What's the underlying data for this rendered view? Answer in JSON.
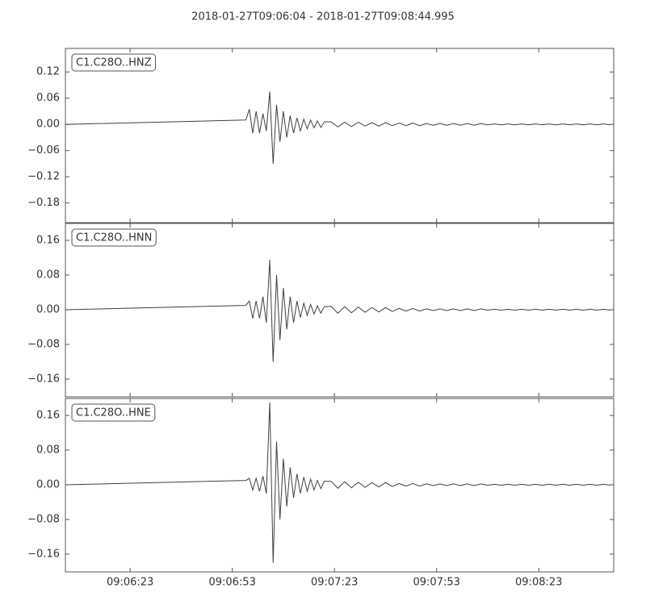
{
  "title": "2018-01-27T09:06:04  -  2018-01-27T09:08:44.995",
  "chart_data": [
    {
      "type": "line",
      "label": "C1.C28O..HNZ",
      "color": "#404040",
      "xlim": [
        "09:06:04",
        "09:08:44.995"
      ],
      "xticks": [
        "09:06:23",
        "09:06:53",
        "09:07:23",
        "09:07:53",
        "09:08:23"
      ],
      "ylim": [
        -0.225,
        0.174
      ],
      "yticks": [
        0.12,
        0.06,
        {
          "value": 0,
          "label": "0.00"
        },
        {
          "value": -0.06,
          "label": "−0.06"
        },
        {
          "value": -0.12,
          "label": "−0.12"
        },
        {
          "value": -0.18,
          "label": "−0.18"
        }
      ],
      "x": [
        "09:06:04",
        "09:06:57",
        "09:06:58",
        "09:06:59",
        "09:07:00",
        "09:07:01",
        "09:07:02",
        "09:07:03",
        "09:07:04",
        "09:07:05",
        "09:07:06",
        "09:07:07",
        "09:07:08",
        "09:07:09",
        "09:07:10",
        "09:07:11",
        "09:07:12",
        "09:07:13",
        "09:07:14",
        "09:07:15",
        "09:07:16",
        "09:07:17",
        "09:07:18",
        "09:07:19",
        "09:07:20",
        "09:07:22",
        "09:07:24",
        "09:07:26",
        "09:07:28",
        "09:07:30",
        "09:07:32",
        "09:07:34",
        "09:07:36",
        "09:07:38",
        "09:07:40",
        "09:07:42",
        "09:07:44",
        "09:07:46",
        "09:07:48",
        "09:07:50",
        "09:07:52",
        "09:07:54",
        "09:07:56",
        "09:07:58",
        "09:08:00",
        "09:08:02",
        "09:08:04",
        "09:08:06",
        "09:08:08",
        "09:08:10",
        "09:08:12",
        "09:08:14",
        "09:08:16",
        "09:08:18",
        "09:08:20",
        "09:08:22",
        "09:08:24",
        "09:08:26",
        "09:08:28",
        "09:08:30",
        "09:08:32",
        "09:08:34",
        "09:08:36",
        "09:08:38",
        "09:08:40",
        "09:08:42",
        "09:08:44"
      ],
      "values": [
        0,
        0.01,
        0.035,
        -0.02,
        0.03,
        -0.02,
        0.025,
        -0.015,
        0.075,
        -0.09,
        0.045,
        -0.04,
        0.03,
        -0.03,
        0.02,
        -0.02,
        0.015,
        -0.015,
        0.012,
        -0.01,
        0.01,
        -0.008,
        0.008,
        -0.007,
        0.006,
        0.006,
        -0.006,
        0.005,
        -0.005,
        0.005,
        -0.004,
        0.004,
        -0.004,
        0.004,
        -0.003,
        0.003,
        -0.003,
        0.003,
        -0.003,
        0.002,
        -0.002,
        0.002,
        -0.002,
        0.002,
        -0.002,
        0.002,
        -0.002,
        0.002,
        -0.001,
        0.001,
        -0.001,
        0.001,
        -0.001,
        0.001,
        -0.001,
        0.001,
        -0.001,
        0.001,
        -0.001,
        0.001,
        -0.001,
        0.001,
        -0.001,
        0.001,
        -0.001,
        0.001,
        -0.001
      ]
    },
    {
      "type": "line",
      "label": "C1.C28O..HNN",
      "color": "#404040",
      "xlim": [
        "09:06:04",
        "09:08:44.995"
      ],
      "xticks": [
        "09:06:23",
        "09:06:53",
        "09:07:23",
        "09:07:53",
        "09:08:23"
      ],
      "ylim": [
        -0.201,
        0.199
      ],
      "yticks": [
        0.16,
        0.08,
        {
          "value": 0,
          "label": "0.00"
        },
        {
          "value": -0.08,
          "label": "−0.08"
        },
        {
          "value": -0.16,
          "label": "−0.16"
        }
      ],
      "x": [
        "09:06:04",
        "09:06:57",
        "09:06:58",
        "09:06:59",
        "09:07:00",
        "09:07:01",
        "09:07:02",
        "09:07:03",
        "09:07:04",
        "09:07:05",
        "09:07:06",
        "09:07:07",
        "09:07:08",
        "09:07:09",
        "09:07:10",
        "09:07:11",
        "09:07:12",
        "09:07:13",
        "09:07:14",
        "09:07:15",
        "09:07:16",
        "09:07:17",
        "09:07:18",
        "09:07:19",
        "09:07:20",
        "09:07:22",
        "09:07:24",
        "09:07:26",
        "09:07:28",
        "09:07:30",
        "09:07:32",
        "09:07:34",
        "09:07:36",
        "09:07:38",
        "09:07:40",
        "09:07:42",
        "09:07:44",
        "09:07:46",
        "09:07:48",
        "09:07:50",
        "09:07:52",
        "09:07:54",
        "09:07:56",
        "09:07:58",
        "09:08:00",
        "09:08:02",
        "09:08:04",
        "09:08:06",
        "09:08:08",
        "09:08:10",
        "09:08:12",
        "09:08:14",
        "09:08:16",
        "09:08:18",
        "09:08:20",
        "09:08:22",
        "09:08:24",
        "09:08:26",
        "09:08:28",
        "09:08:30",
        "09:08:32",
        "09:08:34",
        "09:08:36",
        "09:08:38",
        "09:08:40",
        "09:08:42",
        "09:08:44"
      ],
      "values": [
        0,
        0.01,
        0.02,
        -0.02,
        0.02,
        -0.02,
        0.03,
        -0.03,
        0.115,
        -0.12,
        0.08,
        -0.07,
        0.05,
        -0.045,
        0.03,
        -0.03,
        0.02,
        -0.018,
        0.015,
        -0.013,
        0.012,
        -0.01,
        0.009,
        -0.008,
        0.007,
        0.008,
        -0.008,
        0.007,
        -0.007,
        0.006,
        -0.006,
        0.005,
        -0.005,
        0.005,
        -0.004,
        0.003,
        -0.003,
        0.003,
        -0.003,
        0.002,
        -0.002,
        0.002,
        -0.002,
        0.002,
        -0.002,
        0.002,
        -0.002,
        0.002,
        -0.001,
        0.001,
        -0.001,
        0.001,
        -0.001,
        0.001,
        -0.001,
        0.001,
        -0.001,
        0.001,
        -0.001,
        0.001,
        -0.001,
        0.001,
        -0.001,
        0.001,
        -0.001,
        0.001,
        -0.001
      ]
    },
    {
      "type": "line",
      "label": "C1.C28O..HNE",
      "color": "#404040",
      "xlim": [
        "09:06:04",
        "09:08:44.995"
      ],
      "xticks": [
        "09:06:23",
        "09:06:53",
        "09:07:23",
        "09:07:53",
        "09:08:23"
      ],
      "ylim": [
        -0.201,
        0.199
      ],
      "yticks": [
        0.16,
        0.08,
        {
          "value": 0,
          "label": "0.00"
        },
        {
          "value": -0.08,
          "label": "−0.08"
        },
        {
          "value": -0.16,
          "label": "−0.16"
        }
      ],
      "x": [
        "09:06:04",
        "09:06:57",
        "09:06:58",
        "09:06:59",
        "09:07:00",
        "09:07:01",
        "09:07:02",
        "09:07:03",
        "09:07:04",
        "09:07:05",
        "09:07:06",
        "09:07:07",
        "09:07:08",
        "09:07:09",
        "09:07:10",
        "09:07:11",
        "09:07:12",
        "09:07:13",
        "09:07:14",
        "09:07:15",
        "09:07:16",
        "09:07:17",
        "09:07:18",
        "09:07:19",
        "09:07:20",
        "09:07:22",
        "09:07:24",
        "09:07:26",
        "09:07:28",
        "09:07:30",
        "09:07:32",
        "09:07:34",
        "09:07:36",
        "09:07:38",
        "09:07:40",
        "09:07:42",
        "09:07:44",
        "09:07:46",
        "09:07:48",
        "09:07:50",
        "09:07:52",
        "09:07:54",
        "09:07:56",
        "09:07:58",
        "09:08:00",
        "09:08:02",
        "09:08:04",
        "09:08:06",
        "09:08:08",
        "09:08:10",
        "09:08:12",
        "09:08:14",
        "09:08:16",
        "09:08:18",
        "09:08:20",
        "09:08:22",
        "09:08:24",
        "09:08:26",
        "09:08:28",
        "09:08:30",
        "09:08:32",
        "09:08:34",
        "09:08:36",
        "09:08:38",
        "09:08:40",
        "09:08:42",
        "09:08:44"
      ],
      "values": [
        0,
        0.01,
        0.015,
        -0.012,
        0.015,
        -0.015,
        0.02,
        -0.02,
        0.19,
        -0.18,
        0.1,
        -0.08,
        0.06,
        -0.05,
        0.04,
        -0.03,
        0.025,
        -0.02,
        0.018,
        -0.015,
        0.013,
        -0.012,
        0.01,
        -0.009,
        0.008,
        0.008,
        -0.008,
        0.007,
        -0.007,
        0.006,
        -0.006,
        0.005,
        -0.005,
        0.005,
        -0.004,
        0.003,
        -0.003,
        0.003,
        -0.003,
        0.002,
        -0.002,
        0.002,
        -0.002,
        0.002,
        -0.002,
        0.002,
        -0.002,
        0.002,
        -0.001,
        0.001,
        -0.001,
        0.001,
        -0.001,
        0.001,
        -0.001,
        0.001,
        -0.001,
        0.001,
        -0.001,
        0.001,
        -0.001,
        0.001,
        -0.001,
        0.001,
        -0.001,
        0.001,
        -0.001
      ]
    }
  ]
}
